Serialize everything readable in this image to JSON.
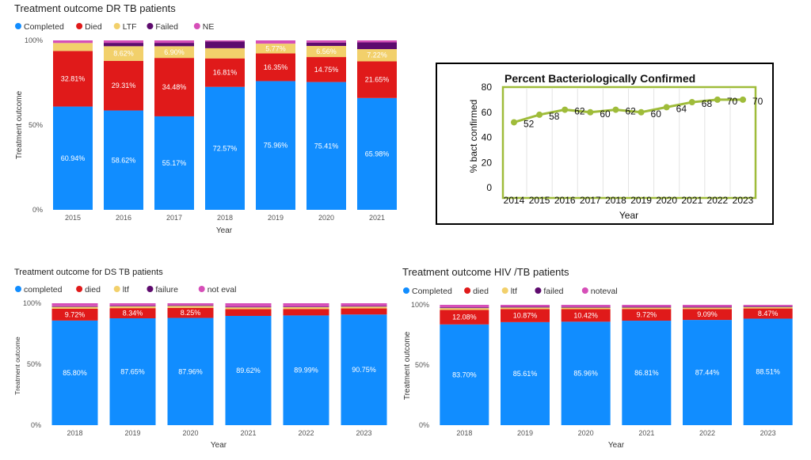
{
  "colors": {
    "completed": "#118DFF",
    "died": "#E01A1A",
    "ltf": "#F2D06B",
    "failed": "#5E0B6E",
    "ne": "#D64FB8",
    "line": "#9FBC3A",
    "frame": "#000000",
    "plot_border": "#9FBC3A"
  },
  "chart_data": [
    {
      "id": "dr",
      "type": "bar",
      "stacked": true,
      "title": "Treatment outcome DR TB patients",
      "xlabel": "Year",
      "ylabel": "Treatment outcome",
      "ytick_labels": [
        "0%",
        "50%",
        "100%"
      ],
      "categories": [
        "2015",
        "2016",
        "2017",
        "2018",
        "2019",
        "2020",
        "2021"
      ],
      "legend": [
        "Completed",
        "Died",
        "LTF",
        "Failed",
        "NE"
      ],
      "series": [
        {
          "name": "Completed",
          "values": [
            60.94,
            58.62,
            55.17,
            72.57,
            75.96,
            75.41,
            65.98
          ]
        },
        {
          "name": "Died",
          "values": [
            32.81,
            29.31,
            34.48,
            16.81,
            16.35,
            14.75,
            21.65
          ]
        },
        {
          "name": "LTF",
          "values": [
            4.7,
            8.62,
            6.9,
            6.0,
            5.77,
            6.56,
            7.22
          ]
        },
        {
          "name": "Failed",
          "values": [
            0.0,
            2.0,
            2.0,
            4.0,
            0.0,
            2.0,
            4.0
          ]
        },
        {
          "name": "NE",
          "values": [
            1.55,
            1.45,
            1.45,
            0.62,
            1.92,
            1.28,
            1.15
          ]
        }
      ],
      "data_labels": {
        "Completed": [
          "60.94%",
          "58.62%",
          "55.17%",
          "72.57%",
          "75.96%",
          "75.41%",
          "65.98%"
        ],
        "Died": [
          "32.81%",
          "29.31%",
          "34.48%",
          "16.81%",
          "16.35%",
          "14.75%",
          "21.65%"
        ],
        "LTF": [
          "",
          "8.62%",
          "6.90%",
          "",
          "5.77%",
          "6.56%",
          "7.22%"
        ]
      },
      "ylim": [
        0,
        100
      ]
    },
    {
      "id": "bact",
      "type": "line",
      "title": "Percent Bacteriologically Confirmed",
      "xlabel": "Year",
      "ylabel": "% bact confirmed",
      "x": [
        "2014",
        "2015",
        "2016",
        "2017",
        "2018",
        "2019",
        "2020",
        "2021",
        "2022",
        "2023"
      ],
      "y": [
        52,
        58,
        62,
        60,
        62,
        60,
        64,
        68,
        70,
        70
      ],
      "point_labels": [
        "52",
        "58",
        "62",
        "60",
        "62",
        "60",
        "64",
        "68",
        "70",
        "70"
      ],
      "yticks": [
        "0",
        "20",
        "40",
        "60",
        "80"
      ],
      "ylim": [
        0,
        80
      ]
    },
    {
      "id": "ds",
      "type": "bar",
      "stacked": true,
      "title": "Treatment outcome for DS TB patients",
      "xlabel": "Year",
      "ylabel": "Treatment outcome",
      "ytick_labels": [
        "0%",
        "50%",
        "100%"
      ],
      "categories": [
        "2018",
        "2019",
        "2020",
        "2021",
        "2022",
        "2023"
      ],
      "legend": [
        "completed",
        "died",
        "ltf",
        "failure",
        "not eval"
      ],
      "series": [
        {
          "name": "completed",
          "values": [
            85.8,
            87.65,
            87.96,
            89.62,
            89.99,
            90.75
          ]
        },
        {
          "name": "died",
          "values": [
            9.72,
            8.34,
            8.25,
            5.5,
            5.3,
            5.0
          ]
        },
        {
          "name": "ltf",
          "values": [
            1.5,
            1.5,
            1.6,
            1.5,
            1.5,
            1.5
          ]
        },
        {
          "name": "failure",
          "values": [
            0.5,
            0.5,
            0.5,
            0.5,
            0.5,
            0.5
          ]
        },
        {
          "name": "not eval",
          "values": [
            2.48,
            2.01,
            1.69,
            2.88,
            2.71,
            2.25
          ]
        }
      ],
      "data_labels": {
        "completed": [
          "85.80%",
          "87.65%",
          "87.96%",
          "89.62%",
          "89.99%",
          "90.75%"
        ],
        "died": [
          "9.72%",
          "8.34%",
          "8.25%",
          "",
          "",
          ""
        ]
      },
      "ylim": [
        0,
        100
      ]
    },
    {
      "id": "hiv",
      "type": "bar",
      "stacked": true,
      "title": "Treatment outcome HIV /TB patients",
      "xlabel": "Year",
      "ylabel": "Treatment outcome",
      "ytick_labels": [
        "0%",
        "50%",
        "100%"
      ],
      "categories": [
        "2018",
        "2019",
        "2020",
        "2021",
        "2022",
        "2023"
      ],
      "legend": [
        "Completed",
        "died",
        "ltf",
        "failed",
        "noteval"
      ],
      "series": [
        {
          "name": "Completed",
          "values": [
            83.7,
            85.61,
            85.96,
            86.81,
            87.44,
            88.51
          ]
        },
        {
          "name": "died",
          "values": [
            12.08,
            10.87,
            10.42,
            9.72,
            9.09,
            8.47
          ]
        },
        {
          "name": "ltf",
          "values": [
            1.5,
            1.3,
            1.3,
            1.2,
            1.2,
            1.2
          ]
        },
        {
          "name": "failed",
          "values": [
            0.6,
            0.6,
            0.6,
            0.6,
            0.6,
            0.6
          ]
        },
        {
          "name": "noteval",
          "values": [
            2.12,
            1.62,
            1.72,
            1.67,
            1.67,
            1.22
          ]
        }
      ],
      "data_labels": {
        "Completed": [
          "83.70%",
          "85.61%",
          "85.96%",
          "86.81%",
          "87.44%",
          "88.51%"
        ],
        "died": [
          "12.08%",
          "10.87%",
          "10.42%",
          "9.72%",
          "9.09%",
          "8.47%"
        ]
      },
      "ylim": [
        0,
        100
      ]
    }
  ]
}
